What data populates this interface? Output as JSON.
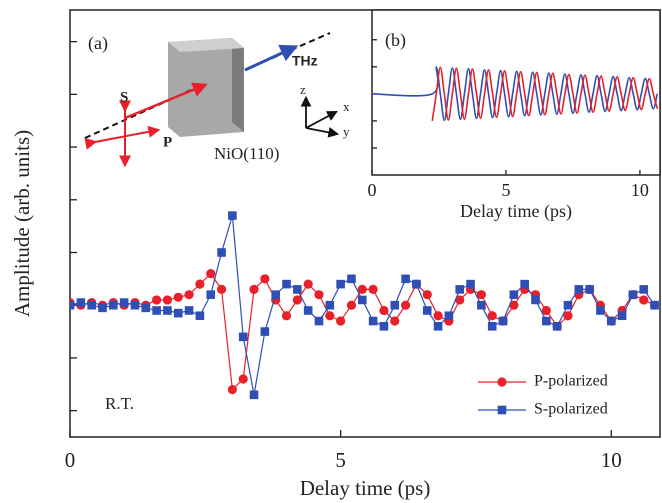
{
  "chart_data": [
    {
      "type": "line",
      "xlabel": "Delay time (ps)",
      "ylabel": "Amplitude (arb. units)",
      "xlim": [
        0,
        10.9
      ],
      "xticks": [
        0,
        5,
        10
      ],
      "ylim": [
        -2.5,
        5.6
      ],
      "yticks": [
        -2,
        -1,
        0,
        1,
        2,
        3,
        4,
        5
      ],
      "legend": "lower right",
      "annotations": [
        "(a)",
        "S",
        "P",
        "THz",
        "z",
        "x",
        "y",
        "NiO(110)",
        "R.T."
      ],
      "x": [
        0,
        0.2,
        0.4,
        0.6,
        0.8,
        1,
        1.2,
        1.4,
        1.6,
        1.8,
        2,
        2.2,
        2.4,
        2.6,
        2.8,
        3,
        3.2,
        3.4,
        3.6,
        3.8,
        4,
        4.2,
        4.4,
        4.6,
        4.8,
        5,
        5.2,
        5.4,
        5.6,
        5.8,
        6,
        6.2,
        6.4,
        6.6,
        6.8,
        7,
        7.2,
        7.4,
        7.6,
        7.8,
        8,
        8.2,
        8.4,
        8.6,
        8.8,
        9,
        9.2,
        9.4,
        9.6,
        9.8,
        10,
        10.2,
        10.4,
        10.6,
        10.8
      ],
      "series": [
        {
          "name": "P-polarized",
          "color": "#e8202a",
          "marker": "circle",
          "values": [
            0.05,
            0,
            0.05,
            0,
            0.05,
            0,
            0.05,
            0,
            0.1,
            0.1,
            0.15,
            0.2,
            0.4,
            0.6,
            0.3,
            -1.6,
            -1.4,
            0.3,
            0.5,
            0.1,
            -0.2,
            0.1,
            0.4,
            0.2,
            -0.2,
            -0.3,
            0,
            0.3,
            0.3,
            -0.1,
            -0.3,
            0,
            0.4,
            0.2,
            -0.2,
            -0.3,
            0.1,
            0.3,
            0.2,
            -0.2,
            -0.3,
            0,
            0.3,
            0.2,
            -0.1,
            -0.4,
            -0.2,
            0.2,
            0.3,
            0,
            -0.3,
            -0.1,
            0.2,
            0.1,
            0
          ]
        },
        {
          "name": "S-polarized",
          "color": "#2f4fb5",
          "marker": "square",
          "values": [
            0,
            0.05,
            0,
            -0.05,
            0,
            0.05,
            0,
            -0.05,
            -0.1,
            -0.1,
            -0.15,
            -0.1,
            -0.2,
            0.2,
            1,
            1.7,
            -0.6,
            -1.7,
            -0.5,
            0.2,
            0.4,
            0.3,
            -0.1,
            -0.3,
            0,
            0.4,
            0.5,
            0.1,
            -0.3,
            -0.4,
            0,
            0.5,
            0.4,
            -0.1,
            -0.4,
            -0.2,
            0.3,
            0.4,
            0,
            -0.4,
            -0.3,
            0.2,
            0.4,
            0.1,
            -0.3,
            -0.4,
            0,
            0.3,
            0.3,
            -0.1,
            -0.3,
            -0.2,
            0.2,
            0.3,
            0
          ]
        }
      ]
    },
    {
      "type": "line",
      "xlabel": "Delay time (ps)",
      "annotations": [
        "(b)"
      ],
      "xlim": [
        0,
        10.75
      ],
      "xticks": [
        0,
        5,
        10
      ],
      "ylim": [
        -3,
        3.1
      ],
      "yticks": [
        -2,
        -1,
        0,
        1,
        2
      ],
      "x": [
        0,
        2.25,
        2.4,
        2.55,
        2.7,
        2.85,
        3,
        3.15,
        3.3,
        3.45,
        3.6,
        3.75,
        3.9,
        4.05,
        4.2,
        4.35,
        4.5,
        4.65,
        4.8,
        4.95,
        5.1,
        5.25,
        5.4,
        5.55,
        5.7,
        5.85,
        6,
        6.15,
        6.3,
        6.45,
        6.6,
        6.75,
        6.9,
        7.05,
        7.2,
        7.35,
        7.5,
        7.65,
        7.8,
        7.95,
        8.1,
        8.25,
        8.4,
        8.55,
        8.7,
        8.85,
        9,
        9.15,
        9.3,
        9.45,
        9.6,
        9.75,
        9.9,
        10.05,
        10.2,
        10.35,
        10.5,
        10.65
      ],
      "series": [
        {
          "color": "#2f4fb5",
          "values": [
            0,
            0,
            0.99,
            0,
            -0.98,
            0,
            0.96,
            0,
            -0.94,
            0,
            0.93,
            0,
            -0.91,
            0,
            0.89,
            0,
            -0.88,
            0,
            0.86,
            0,
            -0.85,
            0,
            0.83,
            0,
            -0.81,
            0,
            0.8,
            0,
            -0.78,
            0,
            0.77,
            0,
            -0.75,
            0,
            0.73,
            0,
            -0.72,
            0,
            0.7,
            0,
            -0.68,
            0,
            0.67,
            0,
            -0.65,
            0,
            0.64,
            0,
            -0.62,
            0,
            0.6,
            0,
            -0.59,
            0,
            0.57,
            0,
            -0.55,
            0
          ]
        },
        {
          "color": "#e8202a",
          "values": [
            null,
            -1,
            0,
            0.98,
            0,
            -0.97,
            0,
            0.95,
            0,
            -0.94,
            0,
            0.92,
            0,
            -0.9,
            0,
            0.89,
            0,
            -0.87,
            0,
            0.85,
            0,
            -0.84,
            0,
            0.82,
            0,
            -0.81,
            0,
            0.79,
            0,
            -0.77,
            0,
            0.76,
            0,
            -0.74,
            0,
            0.72,
            0,
            -0.71,
            0,
            0.69,
            0,
            -0.68,
            0,
            0.66,
            0,
            -0.64,
            0,
            0.63,
            0,
            -0.61,
            0,
            0.6,
            0,
            -0.58,
            0,
            0.56,
            0,
            -0.55
          ]
        }
      ]
    }
  ]
}
